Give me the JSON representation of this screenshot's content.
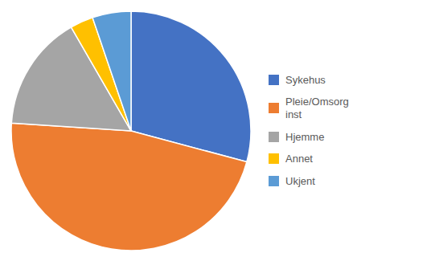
{
  "chart_data": {
    "type": "pie",
    "categories": [
      "Sykehus",
      "Pleie/Omsorg\ninst",
      "Hjemme",
      "Annet",
      "Ukjent"
    ],
    "values": [
      28,
      45,
      15,
      3,
      5
    ],
    "colors": [
      "#4472C4",
      "#ED7D31",
      "#A5A5A5",
      "#FFC000",
      "#5B9BD5"
    ],
    "legend": "right"
  }
}
